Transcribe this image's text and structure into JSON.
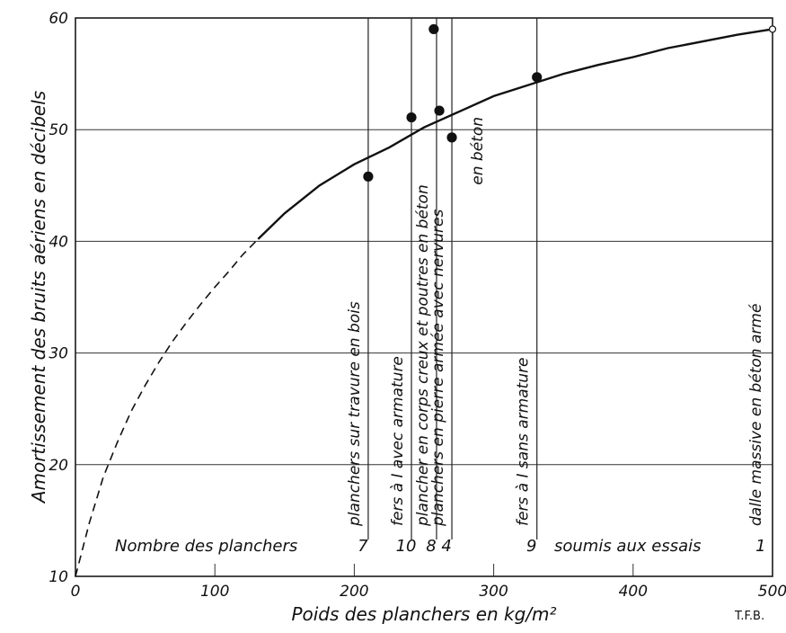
{
  "chart_data": {
    "type": "scatter",
    "xlabel": "Poids des planchers en kg/m²",
    "ylabel": "Amortissement des bruits aériens en décibels",
    "xlim": [
      0,
      500
    ],
    "ylim": [
      10,
      60
    ],
    "x_ticks": [
      "0",
      "100",
      "200",
      "300",
      "400",
      "500"
    ],
    "y_ticks": [
      "10",
      "20",
      "30",
      "40",
      "50",
      "60"
    ],
    "grid": true,
    "points": [
      {
        "x": 210,
        "y": 45.8
      },
      {
        "x": 241,
        "y": 51.1
      },
      {
        "x": 257,
        "y": 59.0
      },
      {
        "x": 261,
        "y": 51.7
      },
      {
        "x": 270,
        "y": 49.3
      },
      {
        "x": 331,
        "y": 54.7
      },
      {
        "x": 500,
        "y": 59.0
      }
    ],
    "curve": {
      "solid": [
        [
          131,
          40.2
        ],
        [
          150,
          42.5
        ],
        [
          175,
          45.0
        ],
        [
          200,
          46.9
        ],
        [
          225,
          48.4
        ],
        [
          250,
          50.2
        ],
        [
          275,
          51.6
        ],
        [
          300,
          53.0
        ],
        [
          325,
          54.0
        ],
        [
          350,
          55.0
        ],
        [
          375,
          55.8
        ],
        [
          400,
          56.5
        ],
        [
          425,
          57.3
        ],
        [
          450,
          57.9
        ],
        [
          475,
          58.5
        ],
        [
          500,
          59.0
        ]
      ],
      "dashed": [
        [
          0,
          10.0
        ],
        [
          10,
          14.8
        ],
        [
          20,
          18.9
        ],
        [
          30,
          22.0
        ],
        [
          40,
          24.8
        ],
        [
          50,
          27.1
        ],
        [
          60,
          29.2
        ],
        [
          70,
          31.1
        ],
        [
          80,
          32.8
        ],
        [
          90,
          34.4
        ],
        [
          100,
          35.9
        ],
        [
          110,
          37.3
        ],
        [
          120,
          38.8
        ],
        [
          131,
          40.2
        ]
      ]
    },
    "floor_types": [
      {
        "x": 210,
        "label": "planchers sur travure   en bois",
        "count": "7"
      },
      {
        "x": 241,
        "label": "fers à I avec armature",
        "count": "10"
      },
      {
        "x": 259,
        "label": "plancher en corps creux et poutres en béton",
        "count": "8"
      },
      {
        "x": 270,
        "label": "planchers en pierre armée avec nervures",
        "label2": "en béton",
        "count": "4"
      },
      {
        "x": 331,
        "label": "fers à I sans armature",
        "count": "9"
      },
      {
        "x": 498,
        "label": "dalle massive en béton armé",
        "count": "1"
      }
    ],
    "count_row": {
      "prefix": "Nombre  des planchers",
      "suffix": "soumis aux essais"
    },
    "signature": "T.F.B."
  }
}
